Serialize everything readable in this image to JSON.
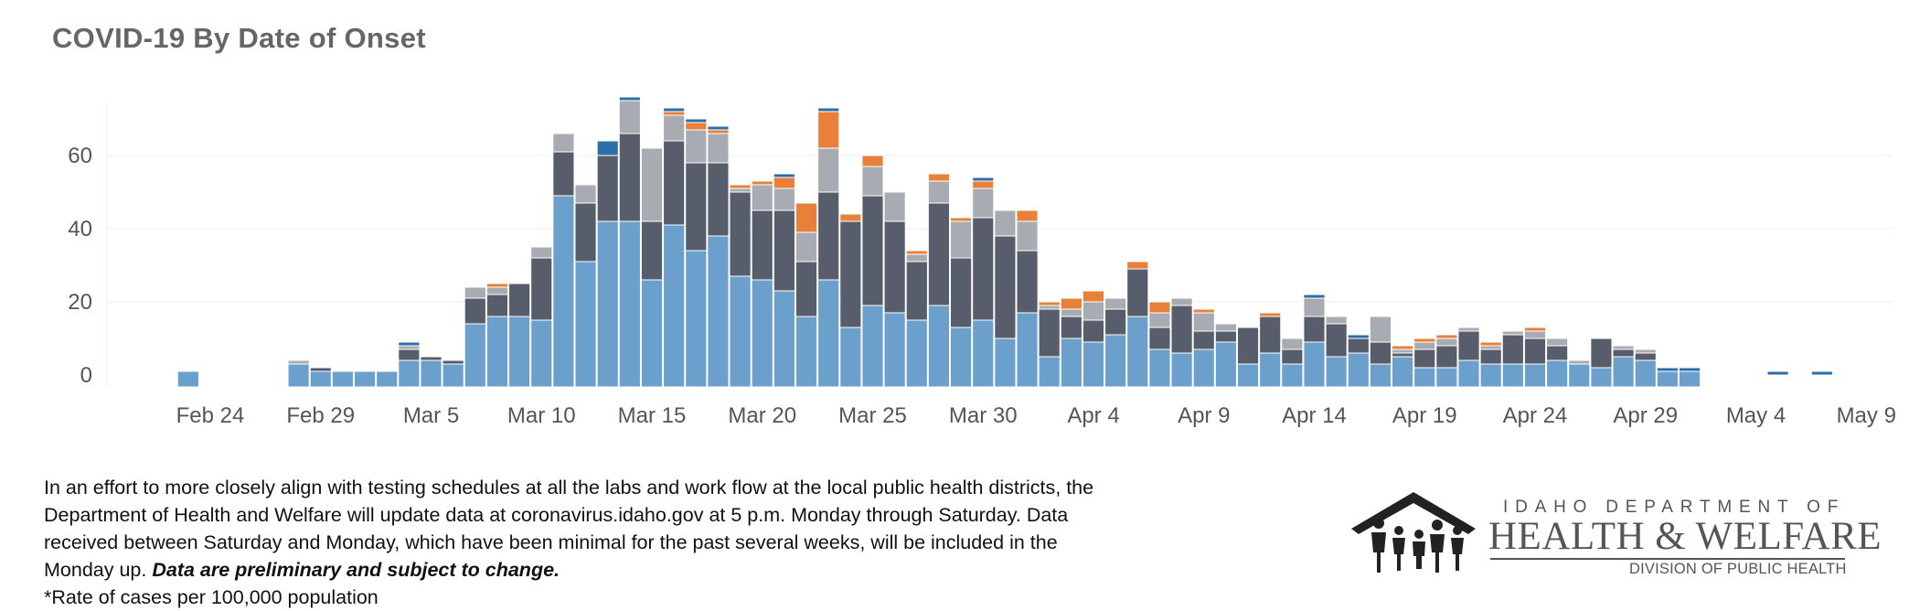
{
  "title": "COVID-19 By Date of Onset",
  "notes": {
    "line1": "In an effort to more closely align with testing schedules at all the labs and work flow at the local public health districts, the",
    "line2": "Department of Health and Welfare will update data at coronavirus.idaho.gov at 5 p.m. Monday through Saturday. Data",
    "line3": "received between Saturday and Monday, which have been minimal for the past several weeks, will be included in the",
    "line4a": "Monday up.",
    "line4b": "Data are preliminary and subject to change.",
    "line5": "*Rate of cases per 100,000 population"
  },
  "logo": {
    "line1": "IDAHO DEPARTMENT OF",
    "line2": "HEALTH & WELFARE",
    "line3": "DIVISION OF PUBLIC HEALTH"
  },
  "colors": {
    "light_blue": "#6b9fcc",
    "dark_gray": "#575d6a",
    "light_gray": "#a9abb3",
    "orange": "#e8803a",
    "blue": "#2e6ea8",
    "grid": "#ececec",
    "axis_text": "#555555"
  },
  "chart_data": {
    "type": "bar",
    "stacked": true,
    "title": "COVID-19 By Date of Onset",
    "xlabel": "",
    "ylabel": "",
    "ylim": [
      0,
      75
    ],
    "grid": true,
    "x_start": "2020-02-20",
    "x_end": "2020-05-10",
    "x_ticks": [
      "Feb 24",
      "Feb 29",
      "Mar 5",
      "Mar 10",
      "Mar 15",
      "Mar 20",
      "Mar 25",
      "Mar 30",
      "Apr 4",
      "Apr 9",
      "Apr 14",
      "Apr 19",
      "Apr 24",
      "Apr 29",
      "May 4",
      "May 9"
    ],
    "y_ticks": [
      0,
      20,
      40,
      60
    ],
    "dates": [
      "Feb 23",
      "Feb 28",
      "Feb 29",
      "Mar 1",
      "Mar 2",
      "Mar 3",
      "Mar 4",
      "Mar 5",
      "Mar 6",
      "Mar 7",
      "Mar 8",
      "Mar 9",
      "Mar 10",
      "Mar 11",
      "Mar 12",
      "Mar 13",
      "Mar 14",
      "Mar 15",
      "Mar 16",
      "Mar 17",
      "Mar 18",
      "Mar 19",
      "Mar 20",
      "Mar 21",
      "Mar 22",
      "Mar 23",
      "Mar 24",
      "Mar 25",
      "Mar 26",
      "Mar 27",
      "Mar 28",
      "Mar 29",
      "Mar 30",
      "Mar 31",
      "Apr 1",
      "Apr 2",
      "Apr 3",
      "Apr 4",
      "Apr 5",
      "Apr 6",
      "Apr 7",
      "Apr 8",
      "Apr 9",
      "Apr 10",
      "Apr 11",
      "Apr 12",
      "Apr 13",
      "Apr 14",
      "Apr 15",
      "Apr 16",
      "Apr 17",
      "Apr 18",
      "Apr 19",
      "Apr 20",
      "Apr 21",
      "Apr 22",
      "Apr 23",
      "Apr 24",
      "Apr 25",
      "Apr 26",
      "Apr 27",
      "Apr 28",
      "Apr 29",
      "Apr 30",
      "May 1",
      "May 2",
      "May 3",
      "May 5",
      "May 7"
    ],
    "series": [
      {
        "color": "#6b9fcc",
        "values": [
          1,
          3,
          1,
          1,
          1,
          1,
          4,
          4,
          3,
          14,
          16,
          16,
          15,
          49,
          31,
          42,
          42,
          26,
          41,
          34,
          38,
          27,
          26,
          23,
          16,
          26,
          13,
          19,
          17,
          15,
          19,
          13,
          15,
          10,
          17,
          5,
          10,
          9,
          11,
          16,
          7,
          6,
          7,
          9,
          3,
          6,
          3,
          9,
          5,
          6,
          3,
          5,
          2,
          2,
          4,
          3,
          3,
          3,
          4,
          3,
          2,
          5,
          4,
          1,
          1,
          0,
          0,
          0,
          0
        ]
      },
      {
        "color": "#575d6a",
        "values": [
          0,
          0,
          1,
          0,
          0,
          0,
          3,
          1,
          1,
          7,
          6,
          9,
          17,
          12,
          16,
          18,
          24,
          16,
          23,
          24,
          20,
          23,
          19,
          22,
          15,
          24,
          29,
          30,
          25,
          16,
          28,
          19,
          28,
          28,
          17,
          13,
          6,
          6,
          7,
          13,
          6,
          13,
          5,
          3,
          10,
          10,
          4,
          7,
          9,
          4,
          6,
          1,
          5,
          6,
          8,
          4,
          8,
          7,
          4,
          0,
          8,
          2,
          2,
          0,
          0,
          0,
          0,
          0,
          0
        ]
      },
      {
        "color": "#a9abb3",
        "values": [
          0,
          1,
          0,
          0,
          0,
          0,
          1,
          0,
          0,
          3,
          2,
          0,
          3,
          5,
          5,
          0,
          9,
          20,
          7,
          9,
          8,
          1,
          7,
          6,
          8,
          12,
          0,
          8,
          8,
          2,
          6,
          10,
          8,
          7,
          8,
          1,
          2,
          5,
          3,
          0,
          4,
          2,
          5,
          2,
          0,
          0,
          3,
          5,
          2,
          0,
          7,
          1,
          2,
          2,
          1,
          1,
          1,
          2,
          2,
          1,
          0,
          1,
          1,
          0,
          0,
          0,
          0,
          0,
          0
        ]
      },
      {
        "color": "#e8803a",
        "values": [
          0,
          0,
          0,
          0,
          0,
          0,
          0,
          0,
          0,
          0,
          1,
          0,
          0,
          0,
          0,
          0,
          0,
          0,
          1,
          2,
          1,
          1,
          1,
          3,
          8,
          10,
          2,
          3,
          0,
          1,
          2,
          1,
          2,
          0,
          3,
          1,
          3,
          3,
          0,
          2,
          3,
          0,
          1,
          0,
          0,
          1,
          0,
          0,
          0,
          0,
          0,
          1,
          1,
          1,
          0,
          1,
          0,
          1,
          0,
          0,
          0,
          0,
          0,
          0,
          0,
          0,
          0,
          0,
          0
        ]
      },
      {
        "color": "#2e6ea8",
        "values": [
          0,
          0,
          0,
          0,
          0,
          0,
          1,
          0,
          0,
          0,
          0,
          0,
          0,
          0,
          0,
          4,
          1,
          0,
          1,
          1,
          1,
          0,
          0,
          1,
          0,
          1,
          0,
          0,
          0,
          0,
          0,
          0,
          1,
          0,
          0,
          0,
          0,
          0,
          0,
          0,
          0,
          0,
          0,
          0,
          0,
          0,
          0,
          1,
          0,
          1,
          0,
          0,
          0,
          0,
          0,
          0,
          0,
          0,
          0,
          0,
          0,
          0,
          0,
          1,
          1,
          0,
          0,
          1,
          1
        ]
      }
    ]
  }
}
